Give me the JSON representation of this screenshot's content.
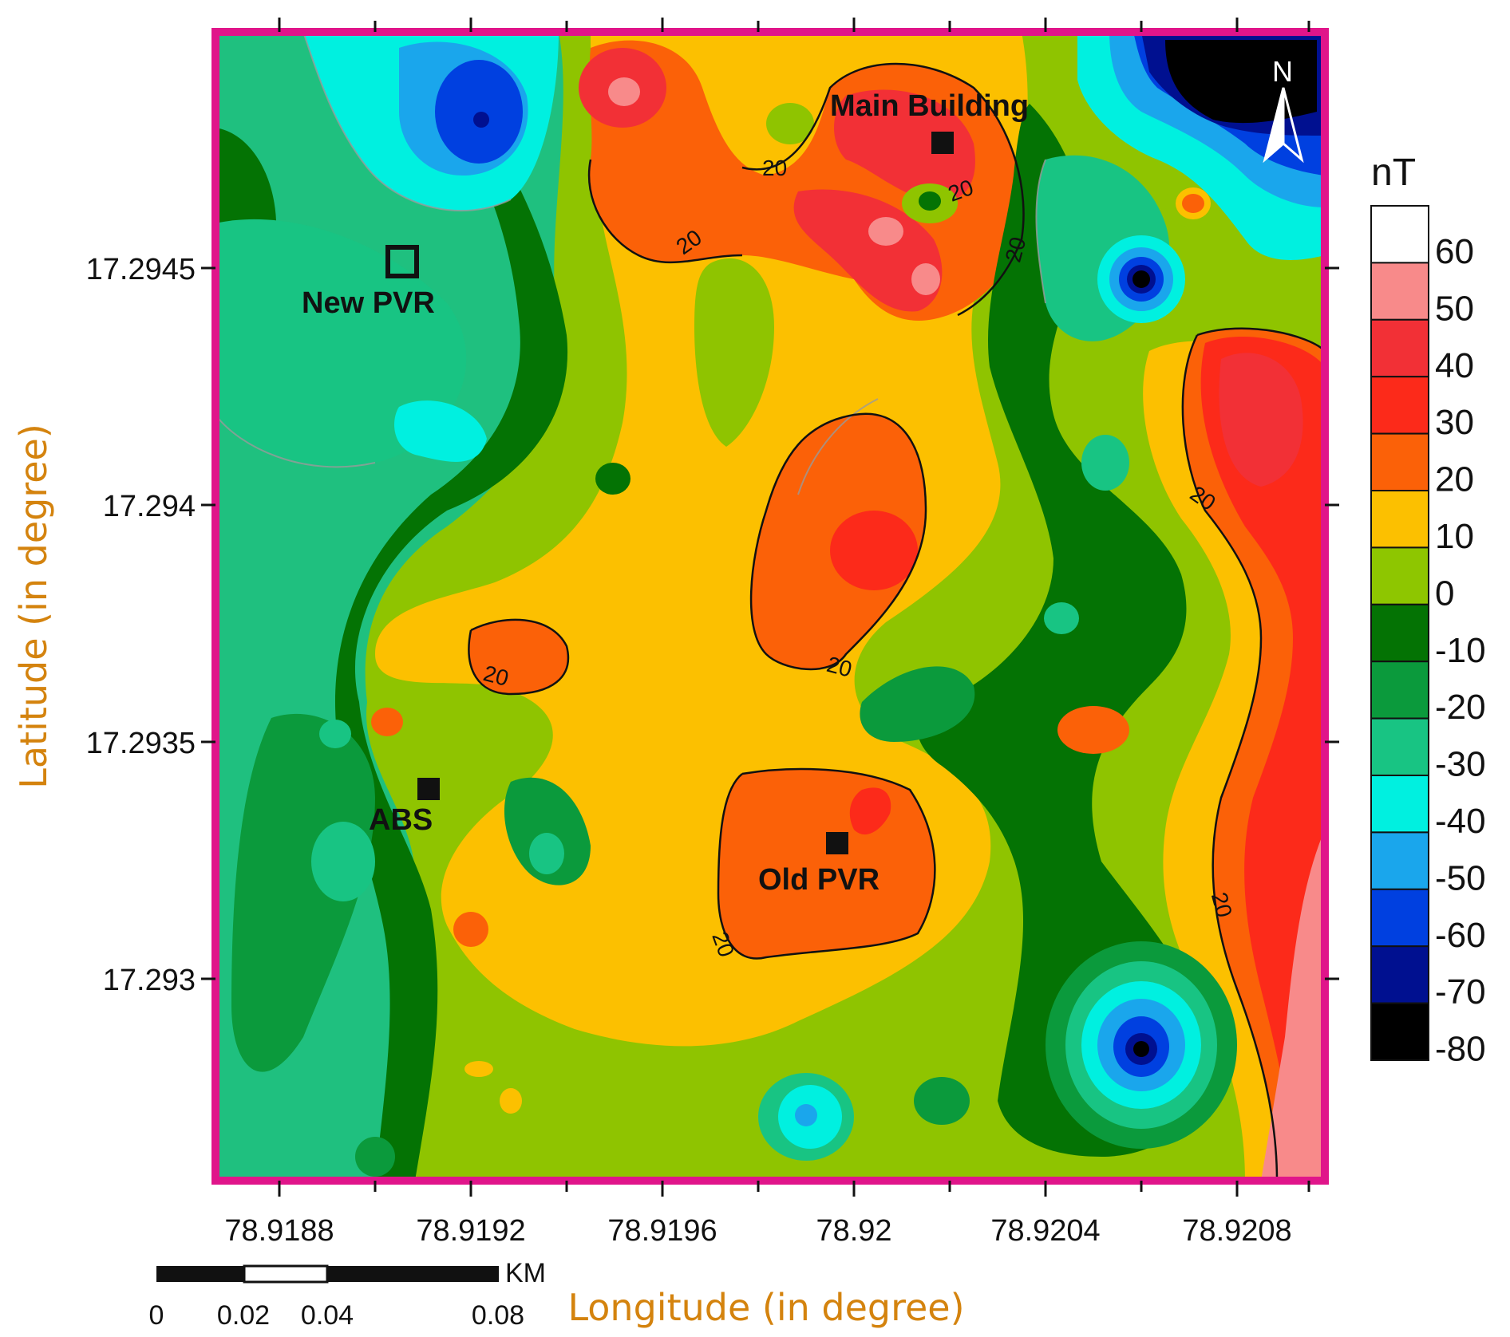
{
  "map": {
    "y_axis_title": "Latitude (in degree)",
    "x_axis_title": "Longitude (in degree)",
    "lon_ticks": [
      "78.9188",
      "78.9192",
      "78.9196",
      "78.92",
      "78.9204",
      "78.9208"
    ],
    "lat_ticks": [
      "17.2945",
      "17.294",
      "17.2935",
      "17.293"
    ],
    "north_label": "N",
    "sites": {
      "main_building": "Main Building",
      "new_pvr": "New PVR",
      "abs": "ABS",
      "old_pvr": "Old PVR"
    },
    "contour_label": "20",
    "colors": {
      "frame": "#e0158a",
      "axis_title": "#d4830e",
      "background_field": "#8fc400"
    }
  },
  "legend": {
    "unit": "nT",
    "labels": [
      "60",
      "50",
      "40",
      "30",
      "20",
      "10",
      "0",
      "-10",
      "-20",
      "-30",
      "-40",
      "-50",
      "-60",
      "-70",
      "-80"
    ],
    "colors": [
      "#ffffff",
      "#f88a8a",
      "#f23036",
      "#fc2a1a",
      "#fb6108",
      "#fcc000",
      "#8ec600",
      "#047304",
      "#0b9a3c",
      "#18c483",
      "#00f0e0",
      "#1aa6ec",
      "#0040e0",
      "#001090",
      "#000000"
    ]
  },
  "scale_bar": {
    "unit": "KM",
    "labels": [
      "0",
      "0.02",
      "0.04",
      "0.08"
    ]
  }
}
